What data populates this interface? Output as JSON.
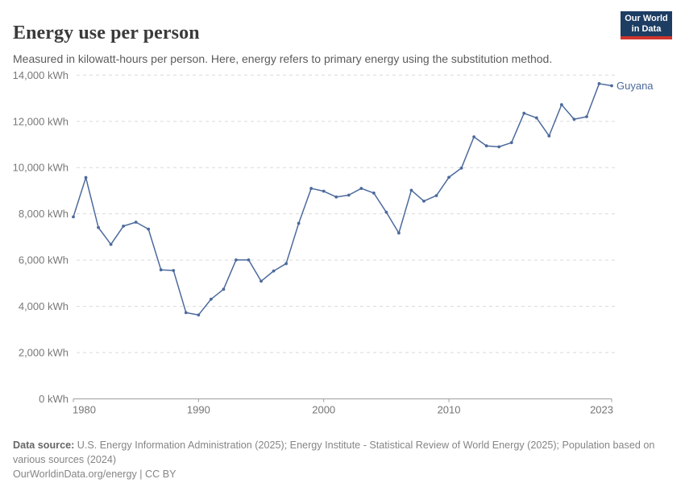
{
  "header": {
    "title": "Energy use per person",
    "subtitle": "Measured in kilowatt-hours per person. Here, energy refers to primary energy using the substitution method.",
    "logo": {
      "line1": "Our World",
      "line2": "in Data",
      "bg_color": "#1d3d63",
      "stripe_color": "#d0342c"
    }
  },
  "chart_data": {
    "type": "line",
    "title": "Energy use per person",
    "unit": "kWh",
    "xlabel": "",
    "ylabel": "",
    "xlim": [
      1980,
      2023
    ],
    "ylim": [
      0,
      14000
    ],
    "x_ticks": [
      1980,
      1990,
      2000,
      2010,
      2023
    ],
    "y_ticks": [
      0,
      2000,
      4000,
      6000,
      8000,
      10000,
      12000,
      14000
    ],
    "y_tick_suffix": " kWh",
    "grid": "horizontal-dashed",
    "legend_position": "end-of-line-label",
    "series": [
      {
        "name": "Guyana",
        "color": "#4c6a9c",
        "x": [
          1980,
          1981,
          1982,
          1983,
          1984,
          1985,
          1986,
          1987,
          1988,
          1989,
          1990,
          1991,
          1992,
          1993,
          1994,
          1995,
          1996,
          1997,
          1998,
          1999,
          2000,
          2001,
          2002,
          2003,
          2004,
          2005,
          2006,
          2007,
          2008,
          2009,
          2010,
          2011,
          2012,
          2013,
          2014,
          2015,
          2016,
          2017,
          2018,
          2019,
          2020,
          2021,
          2022,
          2023
        ],
        "values": [
          7870,
          9570,
          7410,
          6680,
          7470,
          7640,
          7340,
          5580,
          5550,
          3730,
          3630,
          4310,
          4740,
          6010,
          6010,
          5090,
          5530,
          5850,
          7590,
          9100,
          8980,
          8730,
          8810,
          9100,
          8900,
          8070,
          7170,
          9020,
          8550,
          8790,
          9580,
          9980,
          11330,
          10940,
          10900,
          11080,
          12350,
          12150,
          11370,
          12720,
          12090,
          12200,
          13630,
          13540
        ]
      }
    ]
  },
  "footer": {
    "source_label": "Data source:",
    "source_text": " U.S. Energy Information Administration (2025); Energy Institute - Statistical Review of World Energy (2025); Population based on various sources (2024)",
    "license_text": "OurWorldinData.org/energy | CC BY"
  }
}
